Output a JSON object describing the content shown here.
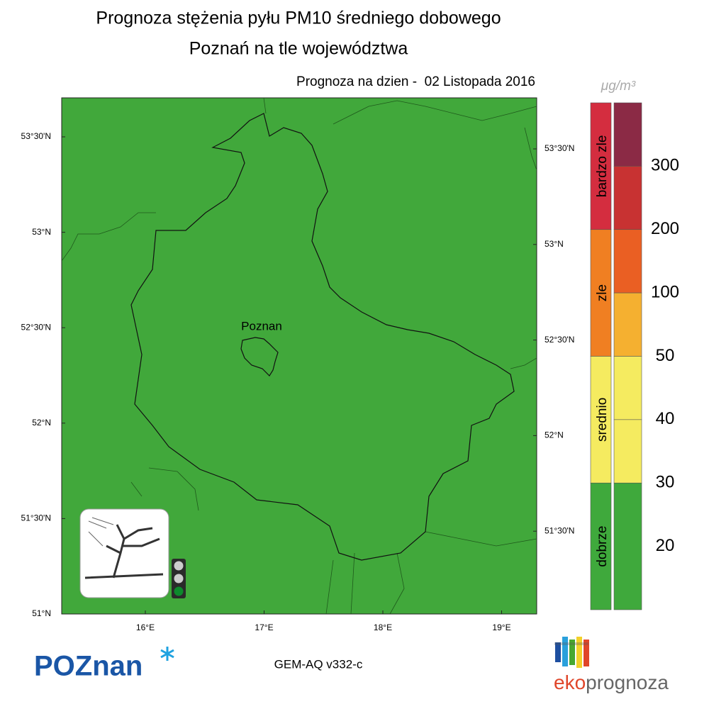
{
  "title": [
    "Prognoza stężenia pyłu PM10 średniego dobowego",
    "Poznań na tle województwa"
  ],
  "forecast_date": "Prognoza na dzien -  02 Listopada 2016",
  "map": {
    "city": "Poznan",
    "lat_labels_left": [
      "53°30'N",
      "53°N",
      "52°30'N",
      "52°N",
      "51°30'N",
      "51°N"
    ],
    "lat_labels_right": [
      "53°30'N",
      "53°N",
      "52°30'N",
      "52°N",
      "51°30'N"
    ],
    "lon_labels": [
      "16°E",
      "17°E",
      "18°E",
      "19°E"
    ]
  },
  "legend": {
    "unit": "μg/m³",
    "categories": [
      {
        "label": "bardzo zle",
        "color": "#d42d3f"
      },
      {
        "label": "zle",
        "color": "#f07f22"
      },
      {
        "label": "srednio",
        "color": "#f5eb60"
      },
      {
        "label": "dobrze",
        "color": "#3fa93c"
      }
    ],
    "scale_colors": [
      "#8b2a45",
      "#c83232",
      "#ea5f23",
      "#f5b030",
      "#f5eb60",
      "#f5eb60",
      "#3fa93c"
    ],
    "levels": [
      "300",
      "200",
      "100",
      "50",
      "40",
      "30",
      "20"
    ]
  },
  "footer": {
    "model": "GEM-AQ v332-c",
    "logo_left": "POZnan",
    "logo_right_1": "eko",
    "logo_right_2": "prognoza"
  }
}
